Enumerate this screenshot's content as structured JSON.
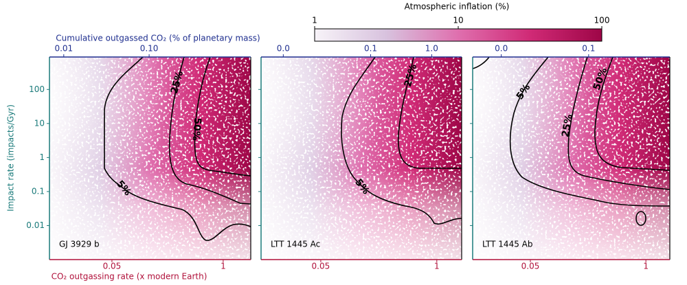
{
  "chart_data": {
    "type": "density",
    "x_label": "CO₂ outgassing rate (x modern Earth)",
    "x_label_top": "Cumulative outgassed CO₂ (% of planetary mass)",
    "y_label": "Impact rate (impacts/Gyr)",
    "x_color": "#b0103a",
    "x_top_color": "#1f2f8f",
    "y_color": "#1a7a7a",
    "log_x": true,
    "log_y": true,
    "ylim": [
      0.001,
      900
    ],
    "yticks": [
      0.01,
      0.1,
      1,
      10,
      100
    ],
    "colorbar": {
      "label": "Atmospheric inflation (%)",
      "lim": [
        1,
        100
      ],
      "ticks": [
        1,
        10,
        100
      ],
      "colormap": [
        "#f7f3f8",
        "#d8c2de",
        "#df6fae",
        "#d02a76",
        "#9e0647"
      ]
    },
    "panels": [
      {
        "title": "GJ 3929 b",
        "xlim": [
          0.0093,
          2.1
        ],
        "xticks": [
          0.05,
          1
        ],
        "xlim_top": [
          0.0068,
          1.55
        ],
        "xticks_top": [
          0.01,
          {
            "value": 0.1,
            "label": "0.10"
          }
        ],
        "contour_labels": [
          "5%",
          "25%",
          "50%"
        ]
      },
      {
        "title": "LTT 1445 Ac",
        "xlim": [
          0.0107,
          1.9
        ],
        "xticks": [
          0.05,
          1
        ],
        "xlim_top": [
          0.0016,
          3.1
        ],
        "xticks_top": [
          {
            "value": 0.0037,
            "label": "0.0"
          },
          0.1,
          {
            "value": 1,
            "label": "1.0"
          }
        ],
        "contour_labels": [
          "5%",
          "25%"
        ]
      },
      {
        "title": "LTT 1445 Ab",
        "xlim": [
          0.0112,
          1.86
        ],
        "xticks": [
          0.05,
          1
        ],
        "xlim_top": [
          0.0047,
          0.85
        ],
        "xticks_top": [
          {
            "value": 0.01,
            "label": "0.0"
          },
          0.1
        ],
        "contour_labels": [
          "5%",
          "25%",
          "50%"
        ]
      }
    ]
  }
}
